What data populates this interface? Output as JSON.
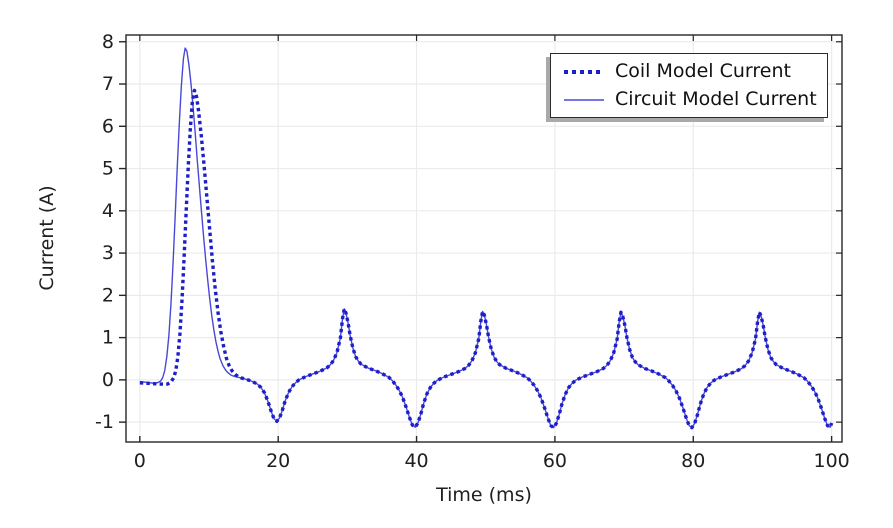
{
  "chart_data": {
    "type": "line",
    "title": "",
    "xlabel": "Time (ms)",
    "ylabel": "Current (A)",
    "xlim": [
      -2,
      101.5
    ],
    "ylim": [
      -1.47,
      8.16
    ],
    "xticks": [
      0,
      20,
      40,
      60,
      80,
      100
    ],
    "yticks": [
      -1,
      0,
      1,
      2,
      3,
      4,
      5,
      6,
      7,
      8
    ],
    "grid": true,
    "legend": {
      "position": "top-right",
      "border": true,
      "shadow": true
    },
    "colors": {
      "coil_line": "#1E1ECB",
      "circuit_line": "#4848D8",
      "grid": "#EBEBEB",
      "axis": "#262626",
      "text": "#202020",
      "legend_shadow": "#A9A9A9"
    },
    "series": [
      {
        "name": "Coil Model Current",
        "line_style": "dotted",
        "color_key": "coil_line",
        "points_transient": [
          [
            0,
            -0.07
          ],
          [
            1,
            -0.08
          ],
          [
            2,
            -0.09
          ],
          [
            3,
            -0.1
          ],
          [
            4,
            -0.1
          ],
          [
            4.5,
            -0.05
          ],
          [
            4.9,
            0.05
          ],
          [
            5.2,
            0.22
          ],
          [
            5.5,
            0.55
          ],
          [
            5.8,
            1.1
          ],
          [
            6.1,
            1.9
          ],
          [
            6.4,
            2.9
          ],
          [
            6.7,
            4.0
          ],
          [
            7,
            5.05
          ],
          [
            7.3,
            5.95
          ],
          [
            7.6,
            6.6
          ],
          [
            7.9,
            6.85
          ],
          [
            8.2,
            6.7
          ],
          [
            8.5,
            6.35
          ],
          [
            8.9,
            5.75
          ],
          [
            9.3,
            5.05
          ],
          [
            9.7,
            4.3
          ],
          [
            10.1,
            3.55
          ],
          [
            10.5,
            2.8
          ],
          [
            10.9,
            2.15
          ],
          [
            11.3,
            1.6
          ],
          [
            11.7,
            1.15
          ],
          [
            12.1,
            0.8
          ],
          [
            12.5,
            0.52
          ],
          [
            12.9,
            0.34
          ],
          [
            13.3,
            0.22
          ],
          [
            13.8,
            0.13
          ],
          [
            14.2,
            0.08
          ],
          [
            14.6,
            0.05
          ]
        ]
      },
      {
        "name": "Circuit Model Current",
        "line_style": "solid",
        "color_key": "circuit_line",
        "points_transient": [
          [
            0,
            -0.04
          ],
          [
            0.5,
            -0.05
          ],
          [
            1,
            -0.06
          ],
          [
            1.5,
            -0.07
          ],
          [
            2,
            -0.08
          ],
          [
            2.5,
            -0.07
          ],
          [
            3,
            -0.03
          ],
          [
            3.3,
            0.05
          ],
          [
            3.6,
            0.22
          ],
          [
            3.9,
            0.55
          ],
          [
            4.2,
            1.05
          ],
          [
            4.5,
            1.8
          ],
          [
            4.8,
            2.75
          ],
          [
            5.1,
            3.85
          ],
          [
            5.4,
            5.0
          ],
          [
            5.7,
            6.05
          ],
          [
            6,
            6.95
          ],
          [
            6.3,
            7.6
          ],
          [
            6.55,
            7.85
          ],
          [
            6.8,
            7.78
          ],
          [
            7.1,
            7.45
          ],
          [
            7.4,
            7.0
          ],
          [
            7.7,
            6.45
          ],
          [
            8,
            5.85
          ],
          [
            8.3,
            5.2
          ],
          [
            8.6,
            4.6
          ],
          [
            8.9,
            4.0
          ],
          [
            9.2,
            3.42
          ],
          [
            9.5,
            2.88
          ],
          [
            9.8,
            2.38
          ],
          [
            10.1,
            1.92
          ],
          [
            10.4,
            1.52
          ],
          [
            10.7,
            1.18
          ],
          [
            11,
            0.9
          ],
          [
            11.3,
            0.68
          ],
          [
            11.6,
            0.5
          ],
          [
            12,
            0.34
          ],
          [
            12.4,
            0.23
          ],
          [
            12.8,
            0.16
          ],
          [
            13.2,
            0.11
          ],
          [
            13.7,
            0.08
          ],
          [
            14.2,
            0.06
          ],
          [
            14.6,
            0.05
          ]
        ]
      }
    ],
    "points_steady_shared": [
      [
        15,
        0.03
      ],
      [
        16,
        -0.02
      ],
      [
        17,
        -0.1
      ],
      [
        17.5,
        -0.18
      ],
      [
        18,
        -0.3
      ],
      [
        18.5,
        -0.5
      ],
      [
        19,
        -0.75
      ],
      [
        19.4,
        -0.92
      ],
      [
        19.8,
        -0.98
      ],
      [
        20.2,
        -0.9
      ],
      [
        20.6,
        -0.72
      ],
      [
        21,
        -0.5
      ],
      [
        21.5,
        -0.3
      ],
      [
        22,
        -0.16
      ],
      [
        22.5,
        -0.07
      ],
      [
        23,
        0
      ],
      [
        24,
        0.08
      ],
      [
        25,
        0.14
      ],
      [
        26,
        0.2
      ],
      [
        27,
        0.28
      ],
      [
        27.5,
        0.35
      ],
      [
        28,
        0.46
      ],
      [
        28.5,
        0.65
      ],
      [
        29,
        1
      ],
      [
        29.3,
        1.45
      ],
      [
        29.55,
        1.68
      ],
      [
        29.8,
        1.58
      ],
      [
        30.1,
        1.35
      ],
      [
        30.4,
        1.05
      ],
      [
        30.8,
        0.75
      ],
      [
        31.2,
        0.55
      ],
      [
        31.6,
        0.44
      ],
      [
        32,
        0.37
      ],
      [
        33,
        0.28
      ],
      [
        34,
        0.22
      ],
      [
        35,
        0.15
      ],
      [
        36,
        0.06
      ],
      [
        36.5,
        -0.02
      ],
      [
        37,
        -0.12
      ],
      [
        37.5,
        -0.25
      ],
      [
        38,
        -0.42
      ],
      [
        38.5,
        -0.65
      ],
      [
        39,
        -0.9
      ],
      [
        39.4,
        -1.07
      ],
      [
        39.8,
        -1.12
      ],
      [
        40.2,
        -1.02
      ],
      [
        40.6,
        -0.82
      ],
      [
        41,
        -0.57
      ],
      [
        41.5,
        -0.33
      ],
      [
        42,
        -0.18
      ],
      [
        42.5,
        -0.08
      ],
      [
        43,
        -0.01
      ],
      [
        44,
        0.07
      ],
      [
        45,
        0.13
      ],
      [
        46,
        0.19
      ],
      [
        47,
        0.27
      ],
      [
        47.5,
        0.34
      ],
      [
        48,
        0.45
      ],
      [
        48.5,
        0.64
      ],
      [
        49,
        0.98
      ],
      [
        49.3,
        1.4
      ],
      [
        49.55,
        1.62
      ],
      [
        49.8,
        1.53
      ],
      [
        50.1,
        1.31
      ],
      [
        50.4,
        1.02
      ],
      [
        50.8,
        0.73
      ],
      [
        51.2,
        0.54
      ],
      [
        51.6,
        0.43
      ],
      [
        52,
        0.36
      ],
      [
        53,
        0.27
      ],
      [
        54,
        0.21
      ],
      [
        55,
        0.14
      ],
      [
        56,
        0.05
      ],
      [
        56.5,
        -0.03
      ],
      [
        57,
        -0.13
      ],
      [
        57.5,
        -0.26
      ],
      [
        58,
        -0.43
      ],
      [
        58.5,
        -0.66
      ],
      [
        59,
        -0.91
      ],
      [
        59.4,
        -1.08
      ],
      [
        59.8,
        -1.13
      ],
      [
        60.2,
        -1.03
      ],
      [
        60.6,
        -0.83
      ],
      [
        61,
        -0.58
      ],
      [
        61.5,
        -0.34
      ],
      [
        62,
        -0.18
      ],
      [
        62.5,
        -0.08
      ],
      [
        63,
        -0.01
      ],
      [
        64,
        0.07
      ],
      [
        65,
        0.13
      ],
      [
        66,
        0.19
      ],
      [
        67,
        0.27
      ],
      [
        67.5,
        0.34
      ],
      [
        68,
        0.45
      ],
      [
        68.5,
        0.64
      ],
      [
        69,
        0.97
      ],
      [
        69.3,
        1.38
      ],
      [
        69.55,
        1.6
      ],
      [
        69.8,
        1.51
      ],
      [
        70.1,
        1.3
      ],
      [
        70.4,
        1.01
      ],
      [
        70.8,
        0.72
      ],
      [
        71.2,
        0.53
      ],
      [
        71.6,
        0.43
      ],
      [
        72,
        0.36
      ],
      [
        73,
        0.27
      ],
      [
        74,
        0.21
      ],
      [
        75,
        0.14
      ],
      [
        76,
        0.05
      ],
      [
        76.5,
        -0.03
      ],
      [
        77,
        -0.13
      ],
      [
        77.5,
        -0.26
      ],
      [
        78,
        -0.43
      ],
      [
        78.5,
        -0.66
      ],
      [
        79,
        -0.91
      ],
      [
        79.4,
        -1.08
      ],
      [
        79.8,
        -1.13
      ],
      [
        80.2,
        -1.03
      ],
      [
        80.6,
        -0.83
      ],
      [
        81,
        -0.58
      ],
      [
        81.5,
        -0.34
      ],
      [
        82,
        -0.18
      ],
      [
        82.5,
        -0.08
      ],
      [
        83,
        -0.01
      ],
      [
        84,
        0.07
      ],
      [
        85,
        0.13
      ],
      [
        86,
        0.19
      ],
      [
        87,
        0.27
      ],
      [
        87.5,
        0.34
      ],
      [
        88,
        0.45
      ],
      [
        88.5,
        0.64
      ],
      [
        89,
        0.97
      ],
      [
        89.3,
        1.38
      ],
      [
        89.55,
        1.6
      ],
      [
        89.8,
        1.51
      ],
      [
        90.1,
        1.3
      ],
      [
        90.4,
        1.01
      ],
      [
        90.8,
        0.72
      ],
      [
        91.2,
        0.53
      ],
      [
        91.6,
        0.43
      ],
      [
        92,
        0.36
      ],
      [
        93,
        0.27
      ],
      [
        94,
        0.21
      ],
      [
        95,
        0.14
      ],
      [
        96,
        0.05
      ],
      [
        96.5,
        -0.03
      ],
      [
        97,
        -0.13
      ],
      [
        97.5,
        -0.26
      ],
      [
        98,
        -0.43
      ],
      [
        98.5,
        -0.66
      ],
      [
        99,
        -0.91
      ],
      [
        99.4,
        -1.08
      ],
      [
        99.8,
        -1.12
      ],
      [
        100,
        -1.02
      ]
    ],
    "steady_note": "Both curves coincide for t >= 15 ms; the shared steady-state points are appended to each series' transient points."
  }
}
